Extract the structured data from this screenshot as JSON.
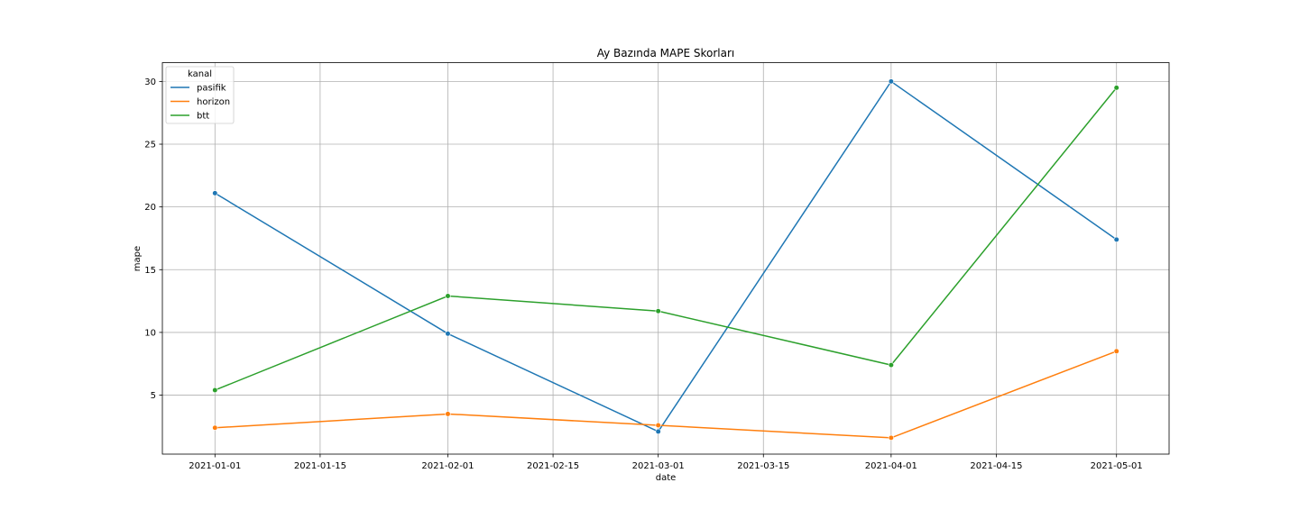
{
  "chart_data": {
    "type": "line",
    "title": "Ay Bazında MAPE Skorları",
    "xlabel": "date",
    "ylabel": "mape",
    "x": [
      "2021-01-01",
      "2021-02-01",
      "2021-03-01",
      "2021-04-01",
      "2021-05-01"
    ],
    "xticks": [
      "2021-01-01",
      "2021-01-15",
      "2021-02-01",
      "2021-02-15",
      "2021-03-01",
      "2021-03-15",
      "2021-04-01",
      "2021-04-15",
      "2021-05-01"
    ],
    "yticks": [
      5,
      10,
      15,
      20,
      25,
      30
    ],
    "xlim": [
      "2020-12-25",
      "2021-05-08"
    ],
    "ylim": [
      0.3,
      31.5
    ],
    "grid": true,
    "legend": {
      "title": "kanal",
      "position": "top-left"
    },
    "series": [
      {
        "name": "pasifik",
        "color": "#1f77b4",
        "values": [
          21.1,
          9.9,
          2.1,
          30.0,
          17.4
        ]
      },
      {
        "name": "horizon",
        "color": "#ff7f0e",
        "values": [
          2.4,
          3.5,
          2.6,
          1.6,
          8.5
        ]
      },
      {
        "name": "btt",
        "color": "#2ca02c",
        "values": [
          5.4,
          12.9,
          11.7,
          7.4,
          29.5
        ]
      }
    ]
  }
}
